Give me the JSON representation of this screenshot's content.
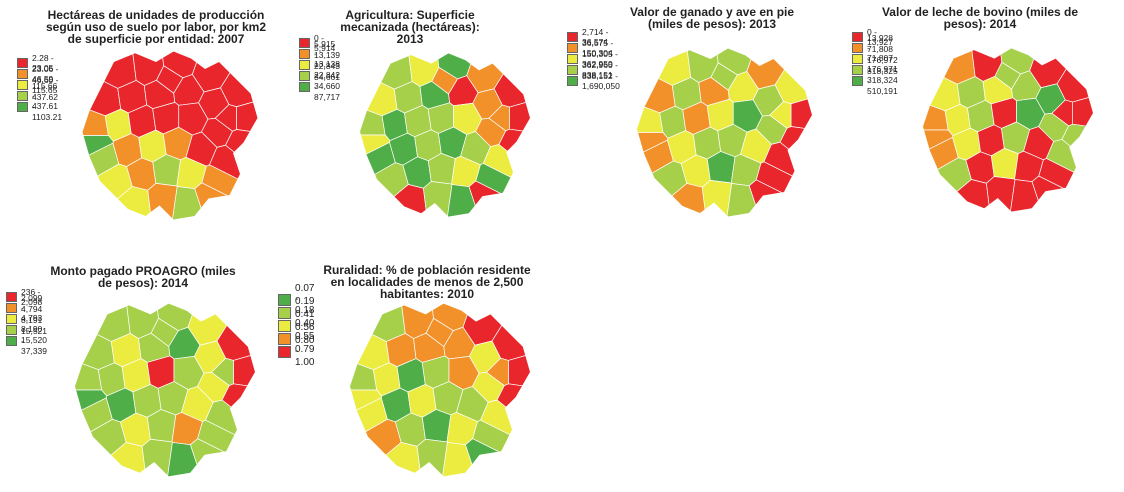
{
  "colors": {
    "red": "#e8262c",
    "orange": "#f2912a",
    "yellow": "#eceb3f",
    "lightgreen": "#a6cf4a",
    "green": "#4fae47"
  },
  "panels": [
    {
      "title": "Hectáreas de unidades de producción según uso de suelo por labor, por km2 de superficie por entidad: 2007",
      "legend": [
        {
          "label": "2.28 - 23.05",
          "color": "#e8262c"
        },
        {
          "label": "23.06 - 46.59",
          "color": "#f2912a"
        },
        {
          "label": "46.60 - 115.65",
          "color": "#eceb3f"
        },
        {
          "label": "115.66 - 437.61",
          "color": "#a6cf4a"
        },
        {
          "label": "437.62 - 1103.21",
          "color": "#4fae47"
        }
      ]
    },
    {
      "title": "Agricultura: Superficie mecanizada (hectáreas): 2013",
      "legend": [
        {
          "label": "0 - 5,914",
          "color": "#e8262c"
        },
        {
          "label": "5,915 - 13,138",
          "color": "#f2912a"
        },
        {
          "label": "13,139 - 22,842",
          "color": "#eceb3f"
        },
        {
          "label": "22,843 - 34,660",
          "color": "#a6cf4a"
        },
        {
          "label": "34,661 - 87,717",
          "color": "#4fae47"
        }
      ]
    },
    {
      "title": "Valor de ganado y ave en pie (miles de pesos): 2013",
      "legend": [
        {
          "label": "2,714 - 36,574",
          "color": "#e8262c"
        },
        {
          "label": "36,575 - 150,304",
          "color": "#f2912a"
        },
        {
          "label": "150,305 - 362,959",
          "color": "#eceb3f"
        },
        {
          "label": "362,960 - 838,151",
          "color": "#a6cf4a"
        },
        {
          "label": "838,152 - 1,690,050",
          "color": "#4fae47"
        }
      ]
    },
    {
      "title": "Valor de leche de bovino (miles de pesos): 2014",
      "legend": [
        {
          "label": "0 - 13,927",
          "color": "#e8262c"
        },
        {
          "label": "13,928 - 71,807",
          "color": "#f2912a"
        },
        {
          "label": "71,808 - 176,971",
          "color": "#eceb3f"
        },
        {
          "label": "176,972 - 318,324",
          "color": "#a6cf4a"
        },
        {
          "label": "318,325 - 510,191",
          "color": "#4fae47"
        }
      ]
    },
    {
      "title": "Monto pagado PROAGRO (miles de pesos): 2014",
      "legend": [
        {
          "label": "236 - 2,098",
          "color": "#e8262c"
        },
        {
          "label": "2,099 - 4,793",
          "color": "#f2912a"
        },
        {
          "label": "4,794 - 8,190",
          "color": "#eceb3f"
        },
        {
          "label": "8,191 - 15,520",
          "color": "#a6cf4a"
        },
        {
          "label": "15,521 - 37,339",
          "color": "#4fae47"
        }
      ]
    },
    {
      "title": "Ruralidad: % de población residente en localidades de menos de 2,500 habitantes: 2010",
      "legend": [
        {
          "label": "0.07 - 0.18",
          "color": "#4fae47"
        },
        {
          "label": "0.19 - 0.40",
          "color": "#a6cf4a"
        },
        {
          "label": "0.41 - 0.55",
          "color": "#eceb3f"
        },
        {
          "label": "0.56 - 0.79",
          "color": "#f2912a"
        },
        {
          "label": "0.80 - 1.00",
          "color": "#e8262c"
        }
      ]
    }
  ]
}
